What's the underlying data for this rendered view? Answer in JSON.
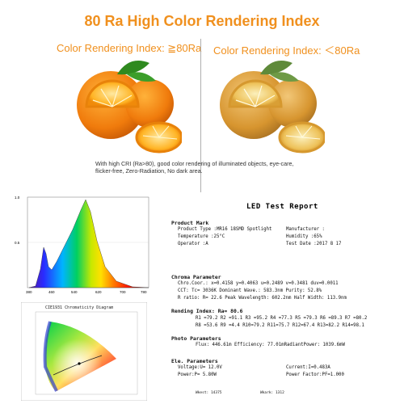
{
  "header": {
    "title": "80 Ra High Color Rendering Index",
    "left_label": "Color Rendering Index: ≧80Ra",
    "right_label": "Color Rendering Index: ＜80Ra"
  },
  "caption": {
    "line1": "With high CRI (Ra>80), good color rendering of illuminated objects, eye-care,",
    "line2": "flicker-free, Zero-Radiation, No dark area."
  },
  "spectrum": {
    "y_ticks": [
      "1.0",
      "0.5"
    ],
    "x_ticks": [
      "380",
      "460",
      "540",
      "620",
      "700",
      "780"
    ]
  },
  "cie": {
    "title": "CIE1931 Chromaticity Diagram"
  },
  "report": {
    "title": "LED Test Report",
    "product_mark": "Product Mark",
    "product_type": "Product Type :MR16 18SMD Spotlight",
    "manufacturer": "Manufacturer :",
    "temperature": "Temperature :25°C",
    "humidity": "Humidity :65%",
    "operator": "Operator :A",
    "test_date": "Test Date :2017   8  17",
    "chroma_head": "Chroma Parameter",
    "chroma1": "Chro.Coor.: x=0.4158  y=0.4063      u=0.2489  v=0.3481    duv=0.0011",
    "chroma2": "CCT: Tc= 3036K   Dominant Wave.: 583.3nm   Purity: 52.8%",
    "chroma3": "R ratio: R= 22.6   Peak Wavelength: 602.2nm   Half Width: 113.9nm",
    "rendering_head": "Rending Index:  Ra= 80.6",
    "r_line1": "R1 =79.2  R2 =91.1  R3 =95.2  R4 =77.3  R5 =79.3  R6 =89.3  R7 =80.2",
    "r_line2": "R8 =53.6  R9 =4.4   R10=79.2  R11=75.7  R12=67.4  R13=82.2  R14=98.1",
    "photo_head": "Photo Parameters",
    "photo1": "Flux:    446.61m     Efficiency:    77.01mRadiantPower:    1039.6mW",
    "ele_head": "Ele. Parameters",
    "voltage": "Voltage:U= 12.0V",
    "current": "Current:I=0.483A",
    "power": "Power:P= 5.80W",
    "power_factor": "Power Factor:PF=1.000",
    "footer_left": "Wkest:   14375",
    "footer_right": "Wkark:   1312"
  }
}
